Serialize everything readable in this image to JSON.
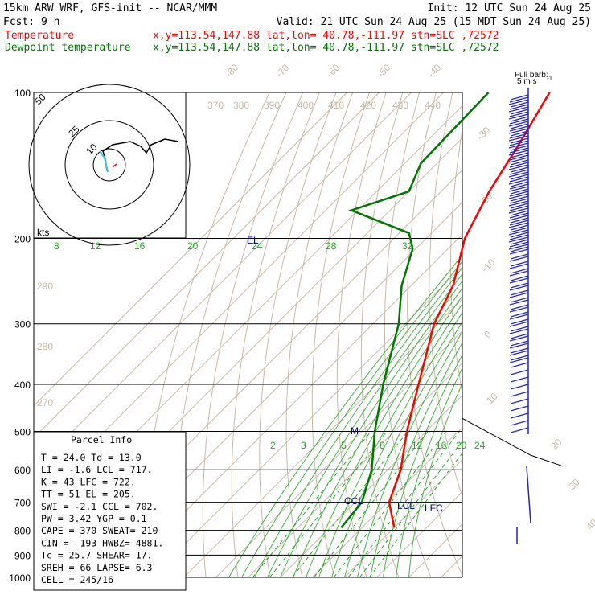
{
  "header": {
    "line1_left": "15km ARW WRF, GFS-init  -- NCAR/MMM",
    "line1_right": "Init: 12 UTC Sun 24 Aug 25",
    "line2_left": "Fcst:   9 h",
    "line2_right": "Valid: 21 UTC Sun 24 Aug 25 (15 MDT Sun 24 Aug 25)",
    "temp_name": "Temperature",
    "temp_info": "x,y=113.54,147.88   lat,lon= 40.78,-111.97  stn=SLC ,72572",
    "dew_name": "Dewpoint temperature",
    "dew_info": "x,y=113.54,147.88   lat,lon= 40.78,-111.97  stn=SLC ,72572"
  },
  "colors": {
    "temperature": "#ff0000",
    "dewpoint": "#007700",
    "isotherm": "#c8b9a8",
    "mixing_ratio": "#22aa22",
    "barb": "#2222cc",
    "markers": "#000088"
  },
  "chart_data": {
    "type": "line",
    "pressure_axis": {
      "log_scale": true,
      "range_hPa": [
        1000,
        100
      ],
      "tick_labels": [
        "100",
        "200",
        "300",
        "400",
        "500",
        "600",
        "700",
        "800",
        "900",
        "1000"
      ]
    },
    "skew_temperature_labels": [
      "-80",
      "-70",
      "-60",
      "-50",
      "-40",
      "-30",
      "-20",
      "-10",
      "0",
      "10",
      "20",
      "30",
      "40"
    ],
    "theta_labels": [
      "370",
      "380",
      "390",
      "400",
      "410",
      "420",
      "430",
      "440",
      "290",
      "280",
      "270"
    ],
    "mixing_ratio_labels": [
      "8",
      "12",
      "16",
      "20",
      "24",
      "28",
      "32",
      "2",
      "3",
      "5",
      "8",
      "12",
      "16",
      "20",
      "24"
    ],
    "series": [
      {
        "name": "Temperature",
        "points": [
          {
            "p": 100,
            "t": -67.0
          },
          {
            "p": 130,
            "t": -60.0
          },
          {
            "p": 160,
            "t": -55.0
          },
          {
            "p": 200,
            "t": -48.0
          },
          {
            "p": 250,
            "t": -37.0
          },
          {
            "p": 300,
            "t": -31.0
          },
          {
            "p": 400,
            "t": -17.0
          },
          {
            "p": 500,
            "t": -6.0
          },
          {
            "p": 600,
            "t": 4.0
          },
          {
            "p": 700,
            "t": 10.5
          },
          {
            "p": 790,
            "t": 20.0
          }
        ]
      },
      {
        "name": "Dewpoint temperature",
        "points": [
          {
            "p": 100,
            "t": -86.0
          },
          {
            "p": 140,
            "t": -85.0
          },
          {
            "p": 160,
            "t": -80.0
          },
          {
            "p": 175,
            "t": -92.0
          },
          {
            "p": 195,
            "t": -67.0
          },
          {
            "p": 210,
            "t": -61.0
          },
          {
            "p": 250,
            "t": -53.0
          },
          {
            "p": 300,
            "t": -42.0
          },
          {
            "p": 400,
            "t": -28.0
          },
          {
            "p": 500,
            "t": -16.0
          },
          {
            "p": 600,
            "t": -5.0
          },
          {
            "p": 700,
            "t": 2.0
          },
          {
            "p": 790,
            "t": 3.5
          }
        ]
      }
    ],
    "level_markers": [
      {
        "label": "EL",
        "p": 205
      },
      {
        "label": "M",
        "p": 495
      },
      {
        "label": "CCL",
        "p": 702
      },
      {
        "label": "LCL",
        "p": 717
      },
      {
        "label": "LFC",
        "p": 722
      }
    ],
    "wind_barbs_label": [
      "Full barb:",
      "5 m s",
      "-1"
    ],
    "hodograph": {
      "ring_labels": [
        "50",
        "25",
        "10"
      ],
      "unit_label": "kts"
    }
  },
  "parcel_info": {
    "title": "Parcel Info",
    "rows": [
      "T  =   24.0 Td =  13.0",
      "LI =   -1.6 LCL =  717.",
      "K  =     43 LFC =  722.",
      "TT =     51 EL  =  205.",
      "SWI =  -2.1 CCL =  702.",
      "PW =   3.42 YGP =   0.1",
      "CAPE =  370 SWEAT=  210",
      "CIN =  -193 HWBZ= 4881.",
      "Tc =   25.7 SHEAR=   17.",
      "SREH =   66 LAPSE=   6.3",
      "CELL = 245/16"
    ]
  }
}
